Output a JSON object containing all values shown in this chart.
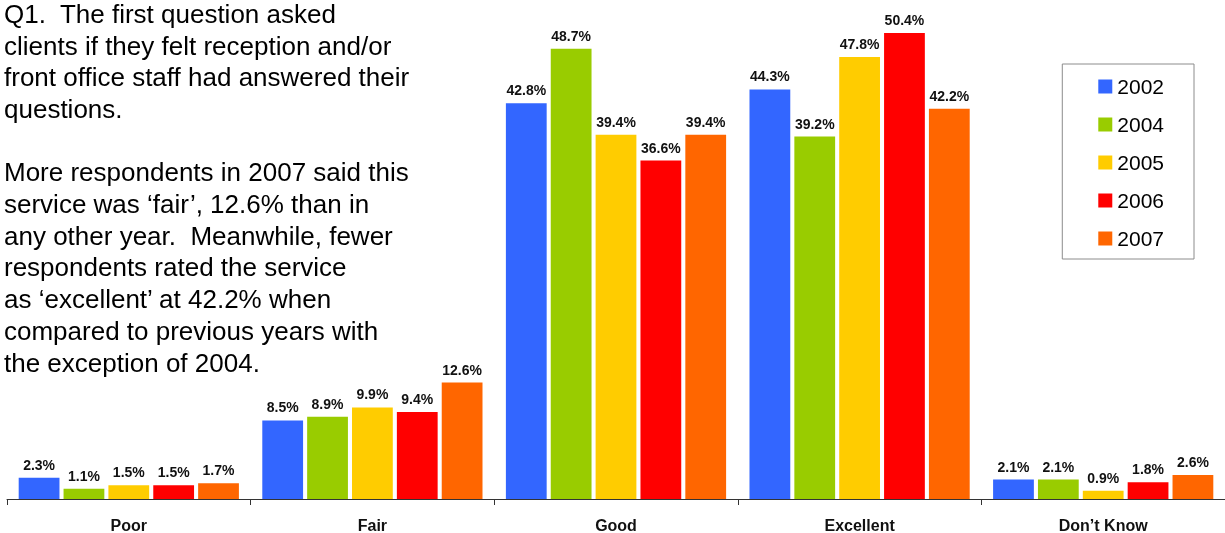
{
  "chart_data": {
    "type": "bar",
    "categories": [
      "Poor",
      "Fair",
      "Good",
      "Excellent",
      "Don’t Know"
    ],
    "series": [
      {
        "name": "2002",
        "color": "#3366ff",
        "values": [
          2.3,
          8.5,
          42.8,
          44.3,
          2.1
        ],
        "value_labels": [
          "2.3%",
          "8.5%",
          "42.8%",
          "44.3%",
          "2.1%"
        ]
      },
      {
        "name": "2004",
        "color": "#99cc00",
        "values": [
          1.1,
          8.9,
          48.7,
          39.2,
          2.1
        ],
        "value_labels": [
          "1.1%",
          "8.9%",
          "48.7%",
          "39.2%",
          "2.1%"
        ]
      },
      {
        "name": "2005",
        "color": "#ffcc00",
        "values": [
          1.5,
          9.9,
          39.4,
          47.8,
          0.9
        ],
        "value_labels": [
          "1.5%",
          "9.9%",
          "39.4%",
          "47.8%",
          "0.9%"
        ]
      },
      {
        "name": "2006",
        "color": "#ff0000",
        "values": [
          1.5,
          9.4,
          36.6,
          50.4,
          1.8
        ],
        "value_labels": [
          "1.5%",
          "9.4%",
          "36.6%",
          "50.4%",
          "1.8%"
        ]
      },
      {
        "name": "2007",
        "color": "#ff6600",
        "values": [
          1.7,
          12.6,
          39.4,
          42.2,
          2.6
        ],
        "value_labels": [
          "1.7%",
          "12.6%",
          "39.4%",
          "42.2%",
          "2.6%"
        ]
      }
    ],
    "legend": "top right",
    "annotations": [
      "Q1.  The first question asked\nclients if they felt reception and/or\nfront office staff had answered their\nquestions.",
      "More respondents in 2007 said this\nservice was ‘fair’, 12.6% than in\nany other year.  Meanwhile, fewer\nrespondents rated the service\nas ‘excellent’ at 42.2% when\ncompared to previous years with\nthe exception of 2004."
    ]
  }
}
